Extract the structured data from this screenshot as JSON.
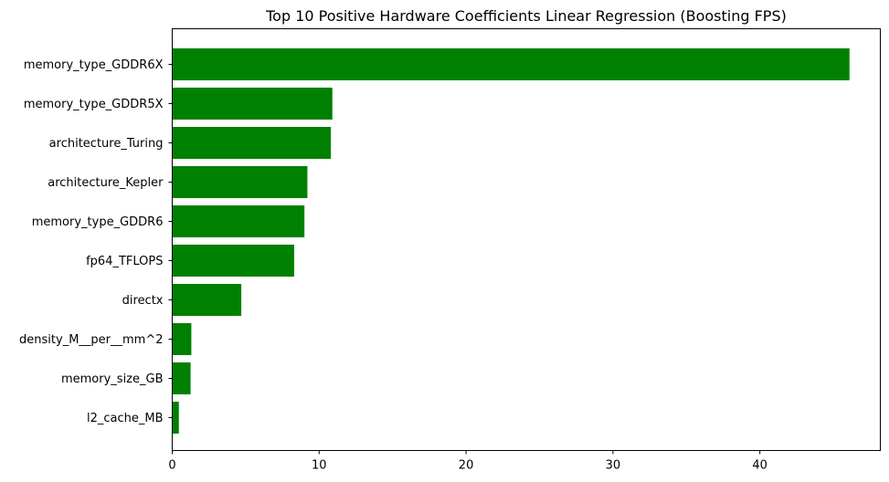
{
  "chart_data": {
    "type": "bar",
    "orientation": "horizontal",
    "title": "Top 10 Positive Hardware Coefficients Linear Regression (Boosting FPS)",
    "xlabel": "",
    "ylabel": "",
    "categories": [
      "memory_type_GDDR6X",
      "memory_type_GDDR5X",
      "architecture_Turing",
      "architecture_Kepler",
      "memory_type_GDDR6",
      "fp64_TFLOPS",
      "directx",
      "density_M__per__mm^2",
      "memory_size_GB",
      "l2_cache_MB"
    ],
    "values": [
      46.1,
      10.9,
      10.8,
      9.2,
      9.0,
      8.3,
      4.7,
      1.3,
      1.25,
      0.45
    ],
    "xlim": [
      0,
      48.2
    ],
    "xticks": [
      0,
      10,
      20,
      30,
      40
    ],
    "grid": false,
    "bar_color": "#008000"
  }
}
